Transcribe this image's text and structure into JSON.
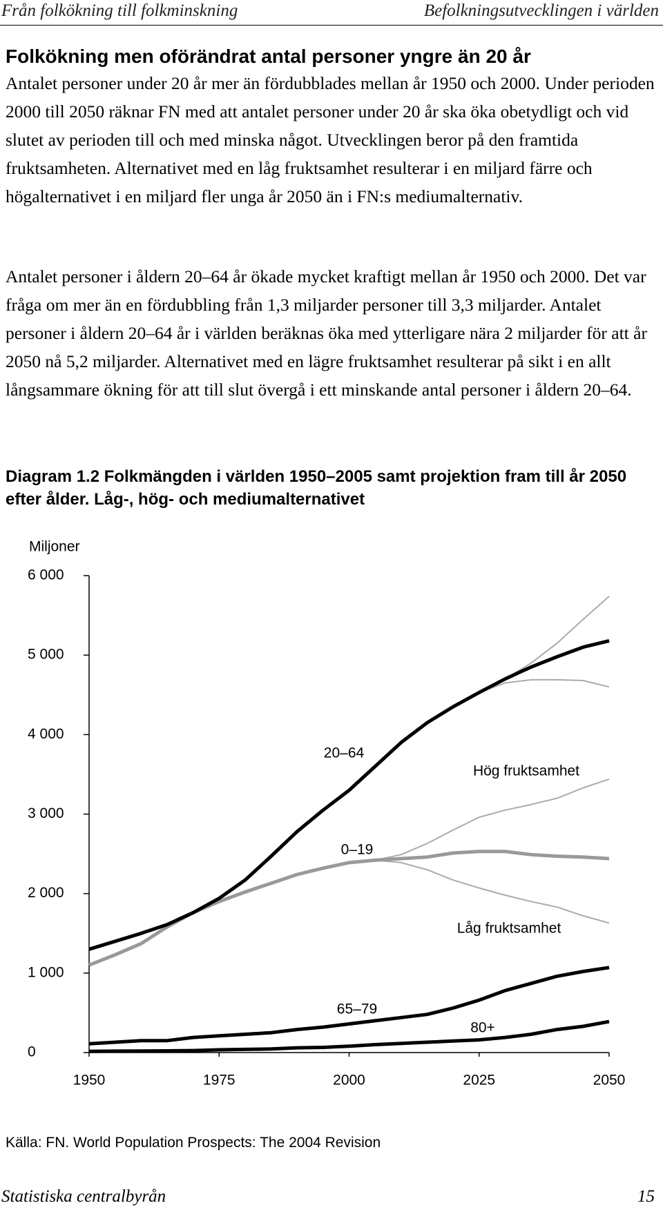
{
  "header": {
    "left": "Från folkökning till folkminskning",
    "right": "Befolkningsutvecklingen i världen"
  },
  "heading": "Folkökning men oförändrat antal personer yngre än 20 år",
  "paragraphs": [
    "Antalet personer under 20 år mer än fördubblades mellan år 1950 och 2000. Under perioden 2000 till 2050 räknar FN med att antalet personer under 20 år ska öka obetydligt och vid slutet av perioden till och med minska något. Utvecklingen beror på den framtida fruktsamheten. Alternativet med en låg fruktsamhet resulterar i en miljard färre och högalternativet i en miljard fler unga år 2050 än i FN:s mediumalternativ.",
    "Antalet personer i åldern 20–64 år ökade mycket kraftigt mellan år 1950 och 2000. Det var fråga om mer än en fördubbling från 1,3 miljarder personer till 3,3 miljarder. Antalet personer i åldern 20–64 år i världen beräknas öka med ytterligare nära 2 miljarder för att år 2050 nå 5,2 miljarder. Alternativet med en lägre fruktsamhet resulterar på sikt i en allt långsammare ökning för att till slut övergå i ett minskande antal personer i åldern 20–64."
  ],
  "caption": "Diagram 1.2 Folkmängden i världen 1950–2005 samt projektion fram till år 2050 efter ålder. Låg-, hög- och mediumalternativet",
  "chart_data": {
    "type": "line",
    "ylabel": "Miljoner",
    "x": [
      1950,
      1955,
      1960,
      1965,
      1970,
      1975,
      1980,
      1985,
      1990,
      1995,
      2000,
      2005,
      2010,
      2015,
      2020,
      2025,
      2030,
      2035,
      2040,
      2045,
      2050
    ],
    "xlim": [
      1950,
      2050
    ],
    "xticks": [
      1950,
      1975,
      2000,
      2025,
      2050
    ],
    "ylim": [
      0,
      6000
    ],
    "yticks": [
      0,
      {
        "value": 1000,
        "label": "1 000"
      },
      {
        "value": 2000,
        "label": "2 000"
      },
      {
        "value": 3000,
        "label": "3 000"
      },
      {
        "value": 4000,
        "label": "4 000"
      },
      {
        "value": 5000,
        "label": "5 000"
      },
      {
        "value": 6000,
        "label": "6 000"
      }
    ],
    "series": [
      {
        "color": "#aaaaaa",
        "width": 2,
        "values": [
          null,
          null,
          null,
          null,
          null,
          null,
          null,
          null,
          null,
          null,
          null,
          null,
          null,
          null,
          null,
          4530,
          4700,
          4900,
          5150,
          5450,
          5740
        ]
      },
      {
        "color": "#aaaaaa",
        "width": 2,
        "values": [
          null,
          null,
          null,
          null,
          null,
          null,
          null,
          null,
          null,
          null,
          null,
          null,
          null,
          null,
          null,
          4530,
          4650,
          4690,
          4690,
          4680,
          4600
        ]
      },
      {
        "color": "#aaaaaa",
        "width": 2,
        "values": [
          null,
          null,
          null,
          null,
          null,
          null,
          null,
          null,
          null,
          null,
          null,
          2420,
          2490,
          2630,
          2800,
          2960,
          3050,
          3120,
          3200,
          3330,
          3440
        ]
      },
      {
        "color": "#aaaaaa",
        "width": 2,
        "values": [
          null,
          null,
          null,
          null,
          null,
          null,
          null,
          null,
          null,
          null,
          null,
          2420,
          2390,
          2300,
          2170,
          2070,
          1980,
          1900,
          1830,
          1720,
          1630
        ]
      },
      {
        "color": "#999999",
        "width": 5,
        "values": [
          1100,
          1230,
          1370,
          1580,
          1760,
          1900,
          2020,
          2130,
          2240,
          2320,
          2390,
          2420,
          2440,
          2460,
          2510,
          2530,
          2530,
          2490,
          2470,
          2460,
          2440
        ]
      },
      {
        "color": "#000000",
        "width": 5,
        "values": [
          1300,
          1400,
          1500,
          1610,
          1760,
          1940,
          2170,
          2470,
          2780,
          3050,
          3300,
          3600,
          3900,
          4150,
          4350,
          4530,
          4700,
          4850,
          4980,
          5100,
          5180
        ]
      },
      {
        "color": "#000000",
        "width": 5,
        "values": [
          110,
          130,
          150,
          150,
          190,
          210,
          230,
          250,
          290,
          320,
          360,
          400,
          440,
          480,
          560,
          660,
          780,
          870,
          960,
          1020,
          1070
        ]
      },
      {
        "color": "#000000",
        "width": 5,
        "values": [
          15,
          18,
          20,
          22,
          25,
          35,
          40,
          45,
          60,
          65,
          80,
          100,
          115,
          130,
          145,
          160,
          190,
          230,
          290,
          330,
          390
        ]
      }
    ],
    "annotations": [
      "20–64",
      "Hög fruktsamhet",
      "0–19",
      "Låg fruktsamhet",
      "65–79",
      "80+"
    ]
  },
  "source": "Källa: FN. World Population Prospects: The 2004 Revision",
  "footer": {
    "left": "Statistiska centralbyrån",
    "right": "15"
  }
}
